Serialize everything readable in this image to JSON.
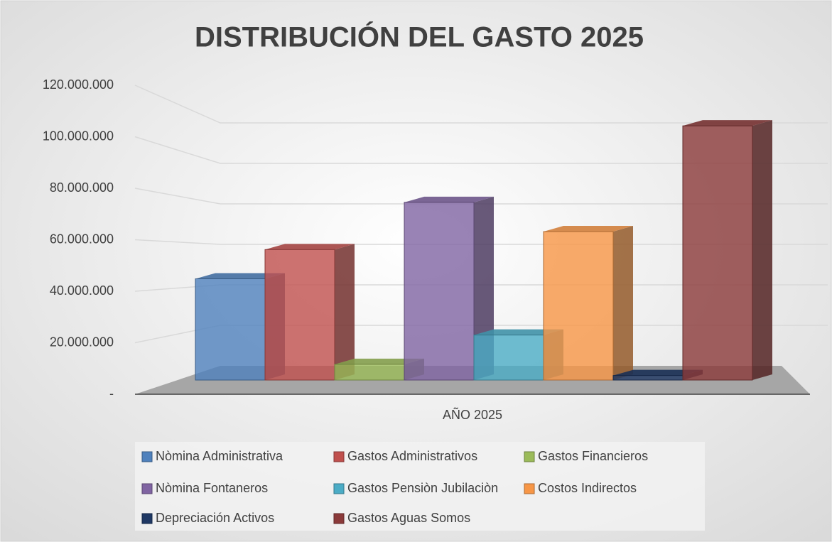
{
  "chart_data": {
    "type": "bar3d",
    "title": "DISTRIBUCIÓN DEL GASTO 2025",
    "categories": [
      "AÑO 2025"
    ],
    "series": [
      {
        "name": "Nòmina Administrativa",
        "color": "#4f81bd",
        "values": [
          45000000
        ]
      },
      {
        "name": "Gastos Administrativos",
        "color": "#c0504d",
        "values": [
          58000000
        ]
      },
      {
        "name": "Gastos Financieros",
        "color": "#9bbb59",
        "values": [
          7000000
        ]
      },
      {
        "name": "Nòmina Fontaneros",
        "color": "#8064a2",
        "values": [
          79000000
        ]
      },
      {
        "name": "Gastos Pensiòn Jubilaciòn",
        "color": "#4bacc6",
        "values": [
          20000000
        ]
      },
      {
        "name": "Costos Indirectos",
        "color": "#f79646",
        "values": [
          66000000
        ]
      },
      {
        "name": "Depreciación Activos",
        "color": "#1f3864",
        "values": [
          2000000
        ]
      },
      {
        "name": "Gastos Aguas Somos",
        "color": "#8b3a3a",
        "values": [
          113000000
        ]
      }
    ],
    "ylim": [
      0,
      120000000
    ],
    "yticks": [
      {
        "value": 0,
        "label": "-"
      },
      {
        "value": 20000000,
        "label": "20.000.000"
      },
      {
        "value": 40000000,
        "label": "40.000.000"
      },
      {
        "value": 60000000,
        "label": "60.000.000"
      },
      {
        "value": 80000000,
        "label": "80.000.000"
      },
      {
        "value": 100000000,
        "label": "100.000.000"
      },
      {
        "value": 120000000,
        "label": "120.000.000"
      }
    ],
    "grid": true,
    "legend": "bottom"
  }
}
